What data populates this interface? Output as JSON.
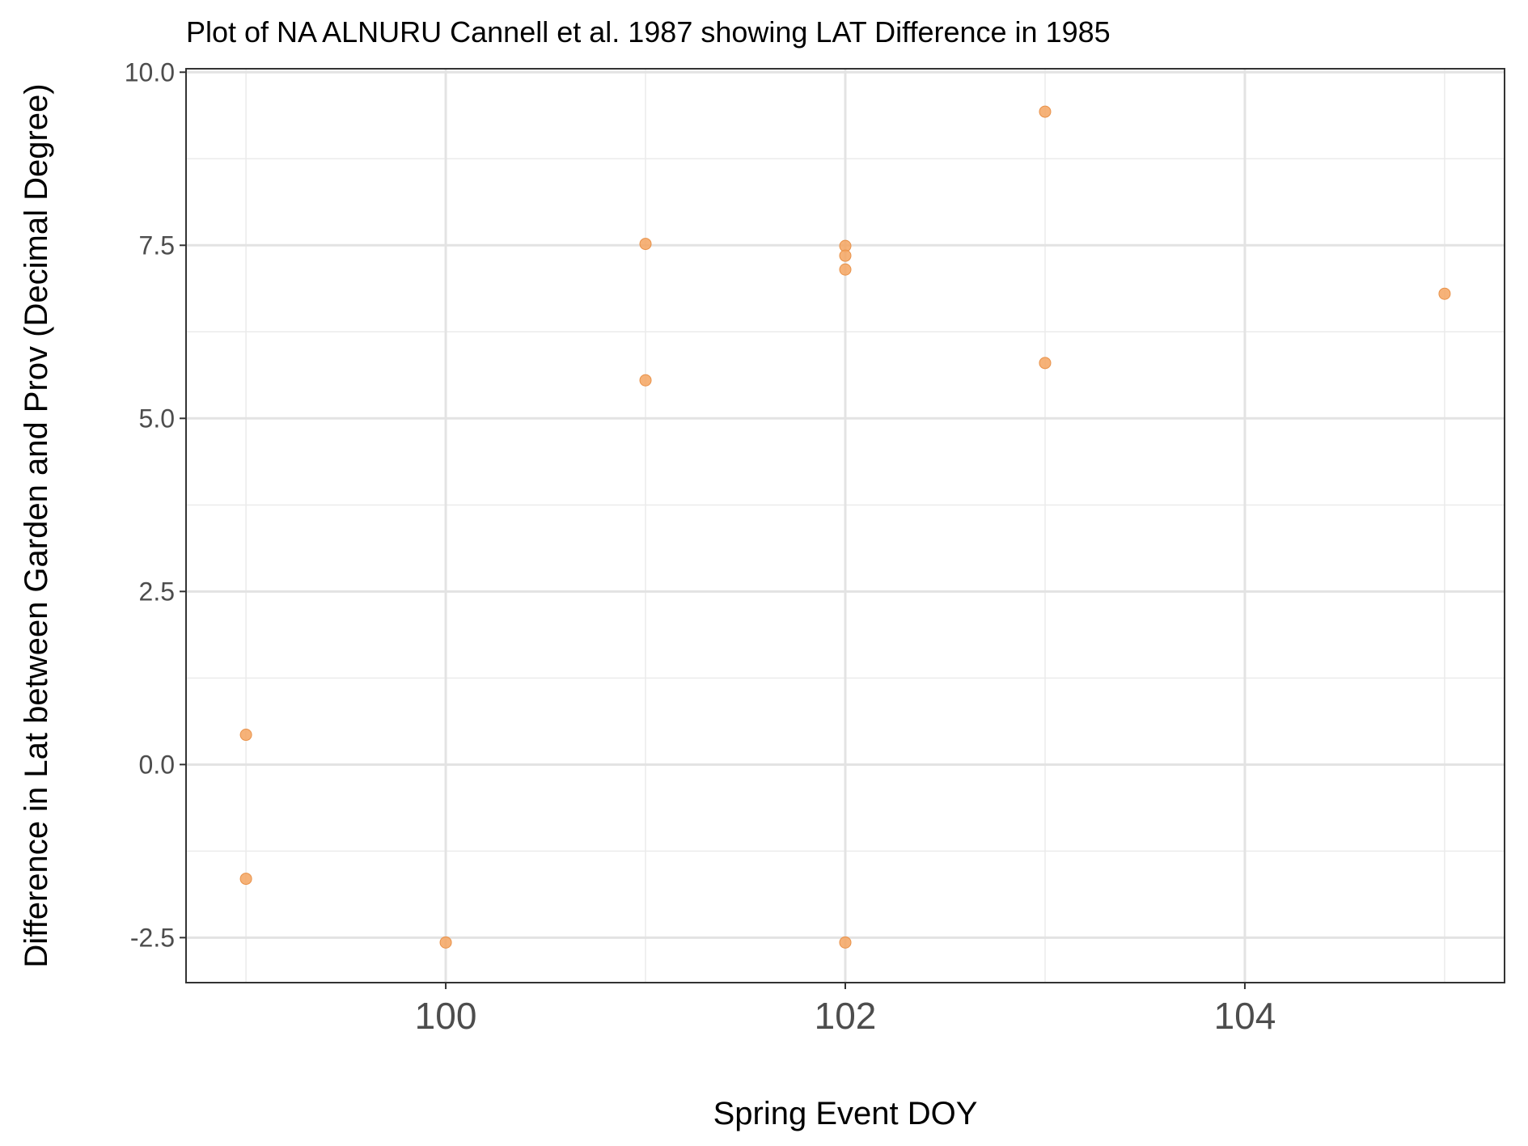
{
  "chart_data": {
    "type": "scatter",
    "title": "Plot of NA ALNURU Cannell et al. 1987 showing LAT Difference in 1985",
    "xlabel": "Spring Event DOY",
    "ylabel": "Difference in Lat between Garden and Prov (Decimal Degree)",
    "xlim": [
      98.7,
      105.3
    ],
    "ylim": [
      -3.15,
      10.05
    ],
    "x_ticks": [
      100,
      102,
      104
    ],
    "x_tick_labels": [
      "100",
      "102",
      "104"
    ],
    "x_minor_ticks": [
      99,
      101,
      103,
      105
    ],
    "y_ticks": [
      -2.5,
      0.0,
      2.5,
      5.0,
      7.5,
      10.0
    ],
    "y_tick_labels": [
      "-2.5",
      "0.0",
      "2.5",
      "5.0",
      "7.5",
      "10.0"
    ],
    "y_minor_ticks": [
      -1.25,
      1.25,
      3.75,
      6.25,
      8.75
    ],
    "grid": true,
    "point_color": "#f4a460",
    "points": [
      {
        "x": 99,
        "y": 0.43
      },
      {
        "x": 99,
        "y": -1.65
      },
      {
        "x": 100,
        "y": -2.57
      },
      {
        "x": 101,
        "y": 7.52
      },
      {
        "x": 101,
        "y": 5.55
      },
      {
        "x": 102,
        "y": 7.49
      },
      {
        "x": 102,
        "y": 7.35
      },
      {
        "x": 102,
        "y": 7.15
      },
      {
        "x": 102,
        "y": -2.57
      },
      {
        "x": 103,
        "y": 9.43
      },
      {
        "x": 103,
        "y": 5.8
      },
      {
        "x": 105,
        "y": 6.8
      }
    ]
  }
}
